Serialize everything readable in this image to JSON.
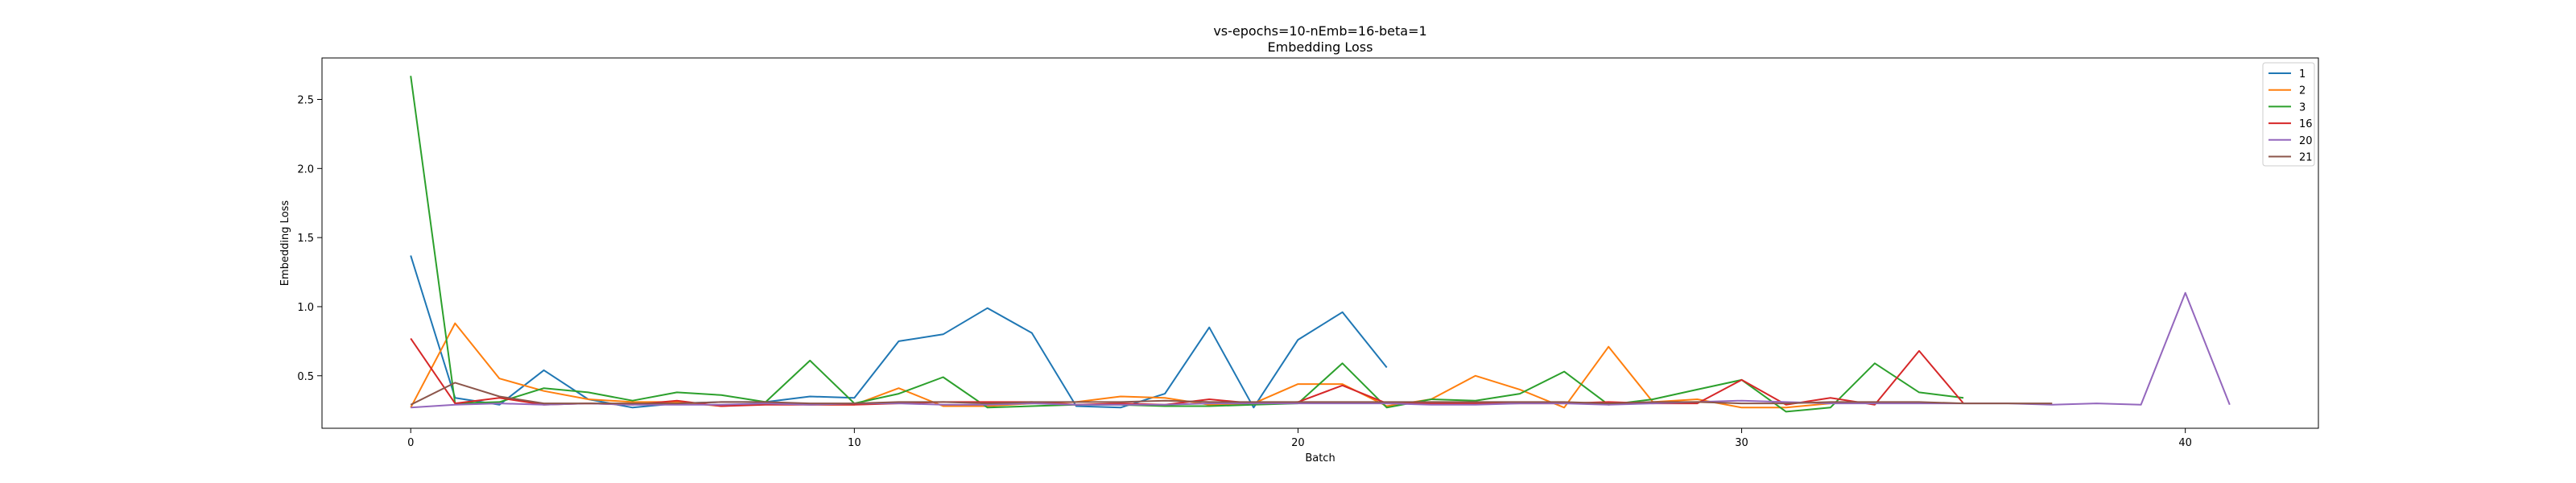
{
  "chart_data": {
    "type": "line",
    "title": "vs-epochs=10-nEmb=16-beta=1",
    "subtitle": "Embedding Loss",
    "xlabel": "Batch",
    "ylabel": "Embedding Loss",
    "xlim": [
      -2,
      43
    ],
    "ylim": [
      0.12,
      2.8
    ],
    "xticks": [
      0,
      10,
      20,
      30,
      40
    ],
    "yticks": [
      0.5,
      1.0,
      1.5,
      2.0,
      2.5
    ],
    "ytick_labels": [
      "0.5",
      "1.0",
      "1.5",
      "2.0",
      "2.5"
    ],
    "grid": false,
    "legend_position": "top-right",
    "series": [
      {
        "name": "1",
        "color": "#1f77b4",
        "x": [
          0,
          1,
          2,
          3,
          4,
          5,
          6,
          7,
          8,
          9,
          10,
          11,
          12,
          13,
          14,
          15,
          16,
          17,
          18,
          19,
          20,
          21,
          22
        ],
        "values": [
          1.37,
          0.34,
          0.29,
          0.54,
          0.33,
          0.27,
          0.3,
          0.31,
          0.31,
          0.35,
          0.34,
          0.75,
          0.8,
          0.99,
          0.81,
          0.28,
          0.27,
          0.37,
          0.85,
          0.27,
          0.76,
          0.96,
          0.56
        ]
      },
      {
        "name": "2",
        "color": "#ff7f0e",
        "x": [
          0,
          1,
          2,
          3,
          4,
          5,
          6,
          7,
          8,
          9,
          10,
          11,
          12,
          13,
          14,
          15,
          16,
          17,
          18,
          19,
          20,
          21,
          22,
          23,
          24,
          25,
          26,
          27,
          28,
          29,
          30,
          31,
          32
        ],
        "values": [
          0.27,
          0.88,
          0.48,
          0.39,
          0.33,
          0.31,
          0.31,
          0.28,
          0.3,
          0.29,
          0.29,
          0.41,
          0.28,
          0.28,
          0.3,
          0.31,
          0.35,
          0.34,
          0.29,
          0.3,
          0.44,
          0.44,
          0.28,
          0.33,
          0.5,
          0.4,
          0.27,
          0.71,
          0.31,
          0.33,
          0.27,
          0.27,
          0.3
        ]
      },
      {
        "name": "3",
        "color": "#2ca02c",
        "x": [
          0,
          1,
          2,
          3,
          4,
          5,
          6,
          7,
          8,
          9,
          10,
          11,
          12,
          13,
          14,
          15,
          16,
          17,
          18,
          19,
          20,
          21,
          22,
          23,
          24,
          25,
          26,
          27,
          28,
          29,
          30,
          31,
          32,
          33,
          34,
          35
        ],
        "values": [
          2.67,
          0.3,
          0.31,
          0.41,
          0.38,
          0.32,
          0.38,
          0.36,
          0.31,
          0.61,
          0.3,
          0.37,
          0.49,
          0.27,
          0.28,
          0.29,
          0.29,
          0.28,
          0.28,
          0.29,
          0.3,
          0.59,
          0.27,
          0.33,
          0.32,
          0.37,
          0.53,
          0.29,
          0.33,
          0.4,
          0.47,
          0.24,
          0.27,
          0.59,
          0.38,
          0.34
        ]
      },
      {
        "name": "16",
        "color": "#d62728",
        "x": [
          0,
          1,
          2,
          3,
          4,
          5,
          6,
          7,
          8,
          9,
          10,
          11,
          12,
          13,
          14,
          15,
          16,
          17,
          18,
          19,
          20,
          21,
          22,
          23,
          24,
          25,
          26,
          27,
          28,
          29,
          30,
          31,
          32,
          33,
          34,
          35
        ],
        "values": [
          0.77,
          0.3,
          0.34,
          0.29,
          0.3,
          0.29,
          0.32,
          0.28,
          0.29,
          0.29,
          0.29,
          0.3,
          0.31,
          0.31,
          0.31,
          0.29,
          0.3,
          0.29,
          0.33,
          0.3,
          0.31,
          0.43,
          0.3,
          0.3,
          0.3,
          0.3,
          0.3,
          0.31,
          0.3,
          0.3,
          0.47,
          0.29,
          0.34,
          0.29,
          0.68,
          0.3
        ]
      },
      {
        "name": "20",
        "color": "#9467bd",
        "x": [
          0,
          1,
          2,
          3,
          4,
          5,
          6,
          7,
          8,
          9,
          10,
          11,
          12,
          13,
          14,
          15,
          16,
          17,
          18,
          19,
          20,
          21,
          22,
          23,
          24,
          25,
          26,
          27,
          28,
          29,
          30,
          31,
          32,
          33,
          34,
          35,
          36,
          37,
          38,
          39,
          40,
          41
        ],
        "values": [
          0.27,
          0.29,
          0.3,
          0.29,
          0.3,
          0.29,
          0.29,
          0.29,
          0.3,
          0.29,
          0.3,
          0.3,
          0.29,
          0.29,
          0.3,
          0.29,
          0.29,
          0.29,
          0.3,
          0.3,
          0.3,
          0.3,
          0.3,
          0.29,
          0.29,
          0.3,
          0.3,
          0.29,
          0.3,
          0.31,
          0.32,
          0.31,
          0.3,
          0.3,
          0.3,
          0.3,
          0.3,
          0.29,
          0.3,
          0.29,
          1.1,
          0.29
        ]
      },
      {
        "name": "21",
        "color": "#8c564b",
        "x": [
          0,
          1,
          2,
          3,
          4,
          5,
          6,
          7,
          8,
          9,
          10,
          11,
          12,
          13,
          14,
          15,
          16,
          17,
          18,
          19,
          20,
          21,
          22,
          23,
          24,
          25,
          26,
          27,
          28,
          29,
          30,
          31,
          32,
          33,
          34,
          35,
          36,
          37
        ],
        "values": [
          0.29,
          0.45,
          0.35,
          0.3,
          0.3,
          0.3,
          0.3,
          0.31,
          0.31,
          0.3,
          0.3,
          0.31,
          0.31,
          0.3,
          0.31,
          0.31,
          0.31,
          0.32,
          0.31,
          0.31,
          0.31,
          0.31,
          0.31,
          0.31,
          0.31,
          0.31,
          0.31,
          0.3,
          0.31,
          0.31,
          0.3,
          0.3,
          0.31,
          0.31,
          0.31,
          0.3,
          0.3,
          0.3
        ]
      }
    ]
  }
}
